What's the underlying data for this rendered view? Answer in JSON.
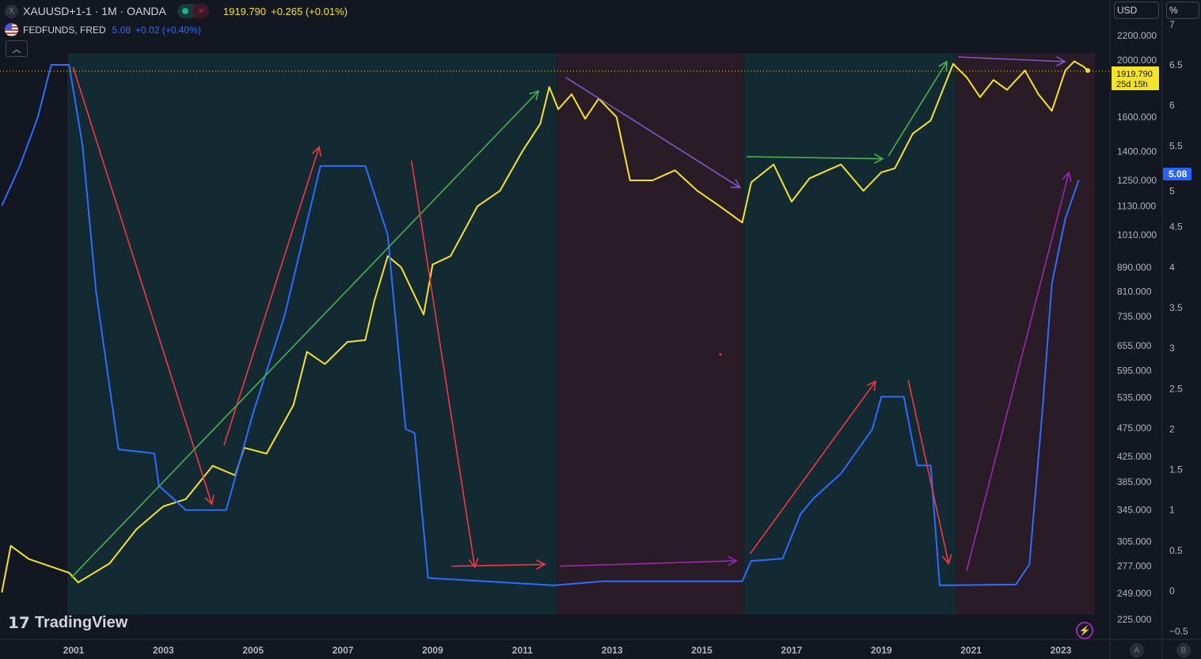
{
  "header": {
    "symbol_icon": "X",
    "symbol": "XAUUSD+1-1 · 1M · OANDA",
    "status_icons": [
      "market-open-dot-icon",
      "delayed-data-icon"
    ],
    "price": "1919.790",
    "change": "+0.265 (+0.01%)",
    "overlay_symbol": "FEDFUNDS, FRED",
    "overlay_value": "5.08",
    "overlay_change": "+0.02 (+0.40%)",
    "collapse_icon": "chevron-up-icon"
  },
  "axes_units": {
    "price": "USD",
    "percent": "%"
  },
  "price_label": {
    "value": "1919.790",
    "countdown": "25d 15h"
  },
  "percent_label": "5.08",
  "logo": "TradingView",
  "scale_buttons": [
    "A",
    "B"
  ],
  "colors": {
    "background": "#131722",
    "gold": "#f5e22a",
    "fedfunds": "#2f6bff",
    "uptrend_zone": "#132a33",
    "downtrend_zone": "#2a1c27"
  },
  "chart_data": {
    "type": "line",
    "x_ticks": [
      "2001",
      "2003",
      "2005",
      "2007",
      "2009",
      "2011",
      "2013",
      "2015",
      "2017",
      "2019",
      "2021",
      "2023"
    ],
    "xlim": [
      1999.36,
      2024.1
    ],
    "price_axis": {
      "scale": "log",
      "ticks": [
        "2200.000",
        "2000.000",
        "1600.000",
        "1400.000",
        "1250.000",
        "1130.000",
        "1010.000",
        "890.000",
        "810.000",
        "735.000",
        "655.000",
        "595.000",
        "535.000",
        "475.000",
        "425.000",
        "385.000",
        "345.000",
        "305.000",
        "277.000",
        "249.000",
        "225.000"
      ]
    },
    "percent_axis": {
      "scale": "linear",
      "ticks": [
        "7",
        "6.5",
        "6",
        "5.5",
        "5",
        "4.5",
        "4",
        "3.5",
        "3",
        "2.5",
        "2",
        "1.5",
        "1",
        "0.5",
        "0",
        "−0.5"
      ],
      "ylim": [
        -0.5,
        7
      ]
    },
    "series": [
      {
        "name": "XAUUSD+1-1",
        "axis": "price",
        "points": [
          [
            1999.4,
            250
          ],
          [
            1999.6,
            300
          ],
          [
            2000.0,
            285
          ],
          [
            2000.9,
            270
          ],
          [
            2001.1,
            260
          ],
          [
            2001.8,
            280
          ],
          [
            2002.4,
            320
          ],
          [
            2003.0,
            350
          ],
          [
            2003.5,
            360
          ],
          [
            2004.1,
            410
          ],
          [
            2004.6,
            395
          ],
          [
            2004.8,
            440
          ],
          [
            2005.3,
            430
          ],
          [
            2005.9,
            520
          ],
          [
            2006.2,
            640
          ],
          [
            2006.6,
            610
          ],
          [
            2007.1,
            665
          ],
          [
            2007.5,
            670
          ],
          [
            2007.7,
            780
          ],
          [
            2008.0,
            930
          ],
          [
            2008.3,
            890
          ],
          [
            2008.8,
            740
          ],
          [
            2009.0,
            900
          ],
          [
            2009.4,
            930
          ],
          [
            2010.0,
            1130
          ],
          [
            2010.5,
            1200
          ],
          [
            2011.0,
            1400
          ],
          [
            2011.4,
            1560
          ],
          [
            2011.6,
            1800
          ],
          [
            2011.8,
            1650
          ],
          [
            2012.1,
            1750
          ],
          [
            2012.4,
            1590
          ],
          [
            2012.7,
            1720
          ],
          [
            2013.1,
            1600
          ],
          [
            2013.4,
            1250
          ],
          [
            2013.9,
            1250
          ],
          [
            2014.4,
            1300
          ],
          [
            2014.9,
            1200
          ],
          [
            2015.4,
            1130
          ],
          [
            2015.9,
            1060
          ],
          [
            2016.1,
            1240
          ],
          [
            2016.6,
            1330
          ],
          [
            2017.0,
            1150
          ],
          [
            2017.4,
            1260
          ],
          [
            2017.8,
            1300
          ],
          [
            2018.1,
            1330
          ],
          [
            2018.6,
            1200
          ],
          [
            2019.0,
            1290
          ],
          [
            2019.3,
            1310
          ],
          [
            2019.7,
            1500
          ],
          [
            2020.1,
            1580
          ],
          [
            2020.6,
            1970
          ],
          [
            2020.9,
            1870
          ],
          [
            2021.2,
            1730
          ],
          [
            2021.5,
            1850
          ],
          [
            2021.8,
            1780
          ],
          [
            2022.2,
            1920
          ],
          [
            2022.5,
            1750
          ],
          [
            2022.8,
            1640
          ],
          [
            2023.1,
            1920
          ],
          [
            2023.3,
            1990
          ],
          [
            2023.5,
            1950
          ],
          [
            2023.6,
            1919.79
          ]
        ]
      },
      {
        "name": "FEDFUNDS",
        "axis": "percent",
        "points": [
          [
            1999.4,
            4.76
          ],
          [
            1999.8,
            5.25
          ],
          [
            2000.2,
            5.85
          ],
          [
            2000.5,
            6.5
          ],
          [
            2000.9,
            6.5
          ],
          [
            2001.2,
            5.5
          ],
          [
            2001.5,
            3.7
          ],
          [
            2002.0,
            1.75
          ],
          [
            2002.8,
            1.7
          ],
          [
            2002.9,
            1.3
          ],
          [
            2003.5,
            1.0
          ],
          [
            2004.4,
            1.0
          ],
          [
            2005.0,
            2.2
          ],
          [
            2005.7,
            3.4
          ],
          [
            2006.5,
            5.25
          ],
          [
            2007.5,
            5.25
          ],
          [
            2008.0,
            4.4
          ],
          [
            2008.4,
            2.0
          ],
          [
            2008.6,
            1.95
          ],
          [
            2008.9,
            0.16
          ],
          [
            2009.2,
            0.15
          ],
          [
            2011.7,
            0.07
          ],
          [
            2012.8,
            0.12
          ],
          [
            2015.9,
            0.12
          ],
          [
            2016.1,
            0.37
          ],
          [
            2016.8,
            0.4
          ],
          [
            2017.2,
            0.95
          ],
          [
            2017.5,
            1.15
          ],
          [
            2018.1,
            1.45
          ],
          [
            2018.8,
            2.0
          ],
          [
            2019.0,
            2.4
          ],
          [
            2019.5,
            2.4
          ],
          [
            2019.8,
            1.55
          ],
          [
            2020.1,
            1.55
          ],
          [
            2020.3,
            0.07
          ],
          [
            2022.0,
            0.08
          ],
          [
            2022.3,
            0.33
          ],
          [
            2022.6,
            2.3
          ],
          [
            2022.8,
            3.8
          ],
          [
            2023.1,
            4.6
          ],
          [
            2023.4,
            5.08
          ]
        ]
      }
    ],
    "zones": [
      {
        "from": 2000.86,
        "to": 2011.76,
        "color": "#132a33"
      },
      {
        "from": 2011.76,
        "to": 2015.94,
        "color": "#2a1c27"
      },
      {
        "from": 2015.94,
        "to": 2020.67,
        "color": "#132a33"
      },
      {
        "from": 2020.67,
        "to": 2023.76,
        "color": "#2a1c27"
      }
    ],
    "arrows": [
      {
        "from": [
          2000.99,
          1944
        ],
        "to": [
          2004.08,
          353
        ],
        "color": "#f23645"
      },
      {
        "from": [
          2004.35,
          444
        ],
        "to": [
          2006.47,
          1423
        ],
        "color": "#f23645"
      },
      {
        "from": [
          2000.95,
          265
        ],
        "to": [
          2011.36,
          1772
        ],
        "color": "#4caf50"
      },
      {
        "from": [
          2008.53,
          1350
        ],
        "to": [
          2009.94,
          276
        ],
        "color": "#f23645"
      },
      {
        "from": [
          2009.42,
          277
        ],
        "to": [
          2011.5,
          279
        ],
        "color": "#f23645"
      },
      {
        "from": [
          2011.83,
          277
        ],
        "to": [
          2015.77,
          283
        ],
        "color": "#9c27b0"
      },
      {
        "from": [
          2011.97,
          1868
        ],
        "to": [
          2015.85,
          1215
        ],
        "color": "#7e57c2"
      },
      {
        "from": [
          2016.0,
          1371
        ],
        "to": [
          2019.03,
          1360
        ],
        "color": "#4caf50"
      },
      {
        "from": [
          2019.16,
          1376
        ],
        "to": [
          2020.46,
          1987
        ],
        "color": "#4caf50"
      },
      {
        "from": [
          2016.08,
          291
        ],
        "to": [
          2018.87,
          570
        ],
        "color": "#f23645"
      },
      {
        "from": [
          2019.6,
          573
        ],
        "to": [
          2020.5,
          280
        ],
        "color": "#f23645"
      },
      {
        "from": [
          2020.72,
          2024
        ],
        "to": [
          2023.09,
          1987
        ],
        "color": "#7e57c2"
      },
      {
        "from": [
          2020.9,
          272
        ],
        "to": [
          2023.18,
          1289
        ],
        "color": "#9c27b0"
      }
    ]
  }
}
